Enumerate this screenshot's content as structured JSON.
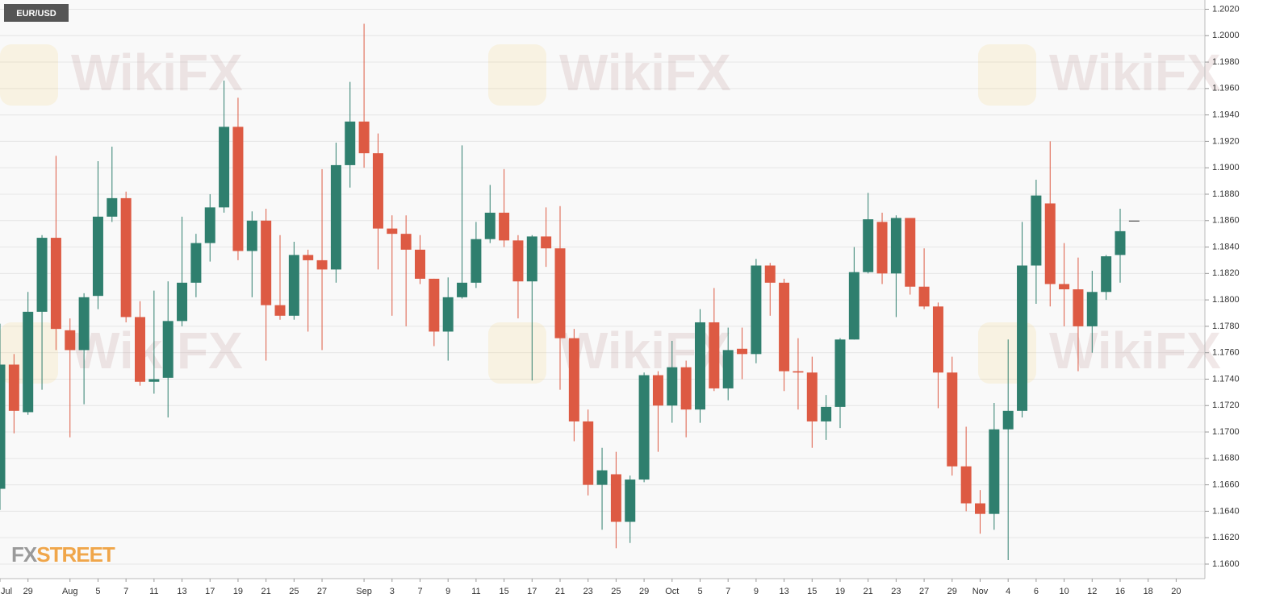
{
  "chart_data": {
    "type": "candlestick",
    "title": "EUR/USD",
    "watermark": "WikiFX",
    "logo": [
      "FX",
      "STREET"
    ],
    "categories": [
      "Jul",
      null,
      "29",
      null,
      null,
      "Aug",
      null,
      "5",
      null,
      "7",
      null,
      "11",
      null,
      "13",
      null,
      "17",
      null,
      "19",
      null,
      "21",
      null,
      "25",
      null,
      "27",
      null,
      null,
      "Sep",
      null,
      "3",
      null,
      "7",
      null,
      "9",
      null,
      "11",
      null,
      "15",
      null,
      "17",
      null,
      "21",
      null,
      "23",
      null,
      "25",
      null,
      "29",
      null,
      "Oct",
      null,
      "5",
      null,
      "7",
      null,
      "9",
      null,
      "13",
      null,
      "15",
      null,
      "19",
      null,
      "21",
      null,
      "23",
      null,
      "27",
      null,
      "29",
      null,
      "Nov",
      null,
      "4",
      null,
      "6",
      null,
      "10",
      null,
      "12",
      null,
      "16",
      null,
      "18",
      null,
      "20"
    ],
    "open": [
      1.1657,
      1.1751,
      1.1715,
      1.1791,
      1.1847,
      1.1777,
      1.1762,
      1.1803,
      1.1863,
      1.1877,
      1.1787,
      1.1738,
      1.1741,
      1.1784,
      1.1813,
      1.1843,
      1.187,
      1.1931,
      1.1837,
      1.186,
      1.1796,
      1.1788,
      1.1834,
      1.183,
      1.1823,
      1.1902,
      1.1935,
      1.1911,
      1.1854,
      1.185,
      1.1838,
      1.1816,
      1.1776,
      1.1802,
      1.1813,
      1.1846,
      1.1866,
      1.1845,
      1.1814,
      1.1848,
      1.1839,
      1.1771,
      1.1708,
      1.166,
      1.1668,
      1.1632,
      1.1664,
      1.1743,
      1.172,
      1.1749,
      1.1717,
      1.1783,
      1.1733,
      1.1763,
      1.1759,
      1.1826,
      1.1813,
      1.1746,
      1.1745,
      1.1708,
      1.1719,
      1.177,
      1.1821,
      1.1859,
      1.182,
      1.1862,
      1.181,
      1.1795,
      1.1745,
      1.1674,
      1.1646,
      1.1638,
      1.1702,
      1.1716,
      1.1826,
      1.1873,
      1.1812,
      1.1808,
      1.178,
      1.1806,
      1.1834,
      1.186,
      null,
      null,
      null
    ],
    "high": [
      1.1782,
      1.1759,
      1.1806,
      1.1849,
      1.1909,
      1.1786,
      1.1805,
      1.1905,
      1.1916,
      1.1882,
      1.1799,
      1.1807,
      1.1814,
      1.1863,
      1.185,
      1.188,
      1.1966,
      1.1953,
      1.1867,
      1.1869,
      1.1849,
      1.1844,
      1.1838,
      1.1899,
      1.1919,
      1.1965,
      1.2009,
      1.1926,
      1.1864,
      1.1864,
      1.1849,
      1.1816,
      1.1817,
      1.1917,
      1.1859,
      1.1887,
      1.1899,
      1.1849,
      1.1849,
      1.187,
      1.1871,
      1.1778,
      1.1717,
      1.1688,
      1.1685,
      1.1667,
      1.1745,
      1.1746,
      1.1769,
      1.1754,
      1.1793,
      1.1809,
      1.1779,
      1.1779,
      1.1831,
      1.1828,
      1.1816,
      1.1771,
      1.1757,
      1.1728,
      1.1771,
      1.184,
      1.1881,
      1.1866,
      1.1864,
      1.1862,
      1.1839,
      1.1798,
      1.1757,
      1.1704,
      1.1656,
      1.1722,
      1.177,
      1.1859,
      1.1891,
      1.192,
      1.1843,
      1.1832,
      1.1822,
      1.1834,
      1.1869,
      1.186,
      null,
      null,
      null
    ],
    "low": [
      1.1641,
      1.1699,
      1.1713,
      1.1732,
      1.1762,
      1.1696,
      1.1721,
      1.1793,
      1.1859,
      1.1783,
      1.1735,
      1.1729,
      1.1711,
      1.178,
      1.1802,
      1.1829,
      1.1866,
      1.183,
      1.1802,
      1.1754,
      1.1785,
      1.1785,
      1.1776,
      1.1762,
      1.1813,
      1.1885,
      1.19,
      1.1823,
      1.1788,
      1.178,
      1.1812,
      1.1765,
      1.1754,
      1.1801,
      1.1809,
      1.1843,
      1.184,
      1.1786,
      1.1739,
      1.1825,
      1.1732,
      1.1693,
      1.1652,
      1.1626,
      1.1612,
      1.1616,
      1.1662,
      1.1685,
      1.1707,
      1.1696,
      1.1707,
      1.1731,
      1.1724,
      1.174,
      1.1752,
      1.1788,
      1.1731,
      1.1717,
      1.1688,
      1.1694,
      1.1703,
      1.177,
      1.182,
      1.1812,
      1.1787,
      1.1804,
      1.1793,
      1.1718,
      1.1667,
      1.164,
      1.1623,
      1.1626,
      1.1603,
      1.1711,
      1.1797,
      1.1795,
      1.178,
      1.1746,
      1.176,
      1.18,
      1.1813,
      1.186,
      null,
      null,
      null
    ],
    "close": [
      1.1751,
      1.1716,
      1.1791,
      1.1847,
      1.1778,
      1.1762,
      1.1802,
      1.1863,
      1.1877,
      1.1787,
      1.1738,
      1.174,
      1.1784,
      1.1813,
      1.1843,
      1.187,
      1.1931,
      1.1837,
      1.186,
      1.1796,
      1.1788,
      1.1834,
      1.183,
      1.1823,
      1.1902,
      1.1935,
      1.1911,
      1.1854,
      1.185,
      1.1838,
      1.1816,
      1.1776,
      1.1802,
      1.1813,
      1.1846,
      1.1866,
      1.1845,
      1.1814,
      1.1848,
      1.1839,
      1.1771,
      1.1708,
      1.166,
      1.1671,
      1.1632,
      1.1664,
      1.1743,
      1.172,
      1.1749,
      1.1717,
      1.1783,
      1.1733,
      1.1762,
      1.1759,
      1.1826,
      1.1813,
      1.1746,
      1.1745,
      1.1708,
      1.1719,
      1.177,
      1.1821,
      1.1861,
      1.182,
      1.1862,
      1.181,
      1.1795,
      1.1745,
      1.1674,
      1.1646,
      1.1638,
      1.1702,
      1.1716,
      1.1826,
      1.1879,
      1.1812,
      1.1808,
      1.178,
      1.1806,
      1.1833,
      1.1852,
      1.186,
      null,
      null,
      null
    ],
    "colors": {
      "up": "#2f7f6e",
      "down": "#dd5a43",
      "flat": "#333333"
    },
    "ylim": [
      1.1589,
      1.2027
    ],
    "yticks": [
      {
        "value": 1.16,
        "label": "1.1600"
      },
      {
        "value": 1.162,
        "label": "1.1620"
      },
      {
        "value": 1.164,
        "label": "1.1640"
      },
      {
        "value": 1.166,
        "label": "1.1660"
      },
      {
        "value": 1.168,
        "label": "1.1680"
      },
      {
        "value": 1.17,
        "label": "1.1700"
      },
      {
        "value": 1.172,
        "label": "1.1720"
      },
      {
        "value": 1.174,
        "label": "1.1740"
      },
      {
        "value": 1.176,
        "label": "1.1760"
      },
      {
        "value": 1.178,
        "label": "1.1780"
      },
      {
        "value": 1.18,
        "label": "1.1800"
      },
      {
        "value": 1.182,
        "label": "1.1820"
      },
      {
        "value": 1.184,
        "label": "1.1840"
      },
      {
        "value": 1.186,
        "label": "1.1860"
      },
      {
        "value": 1.188,
        "label": "1.1880"
      },
      {
        "value": 1.19,
        "label": "1.1900"
      },
      {
        "value": 1.192,
        "label": "1.1920"
      },
      {
        "value": 1.194,
        "label": "1.1940"
      },
      {
        "value": 1.196,
        "label": "1.1960"
      },
      {
        "value": 1.198,
        "label": "1.1980"
      },
      {
        "value": 1.2,
        "label": "1.2000"
      },
      {
        "value": 1.202,
        "label": "1.2020"
      }
    ],
    "grid": true
  }
}
